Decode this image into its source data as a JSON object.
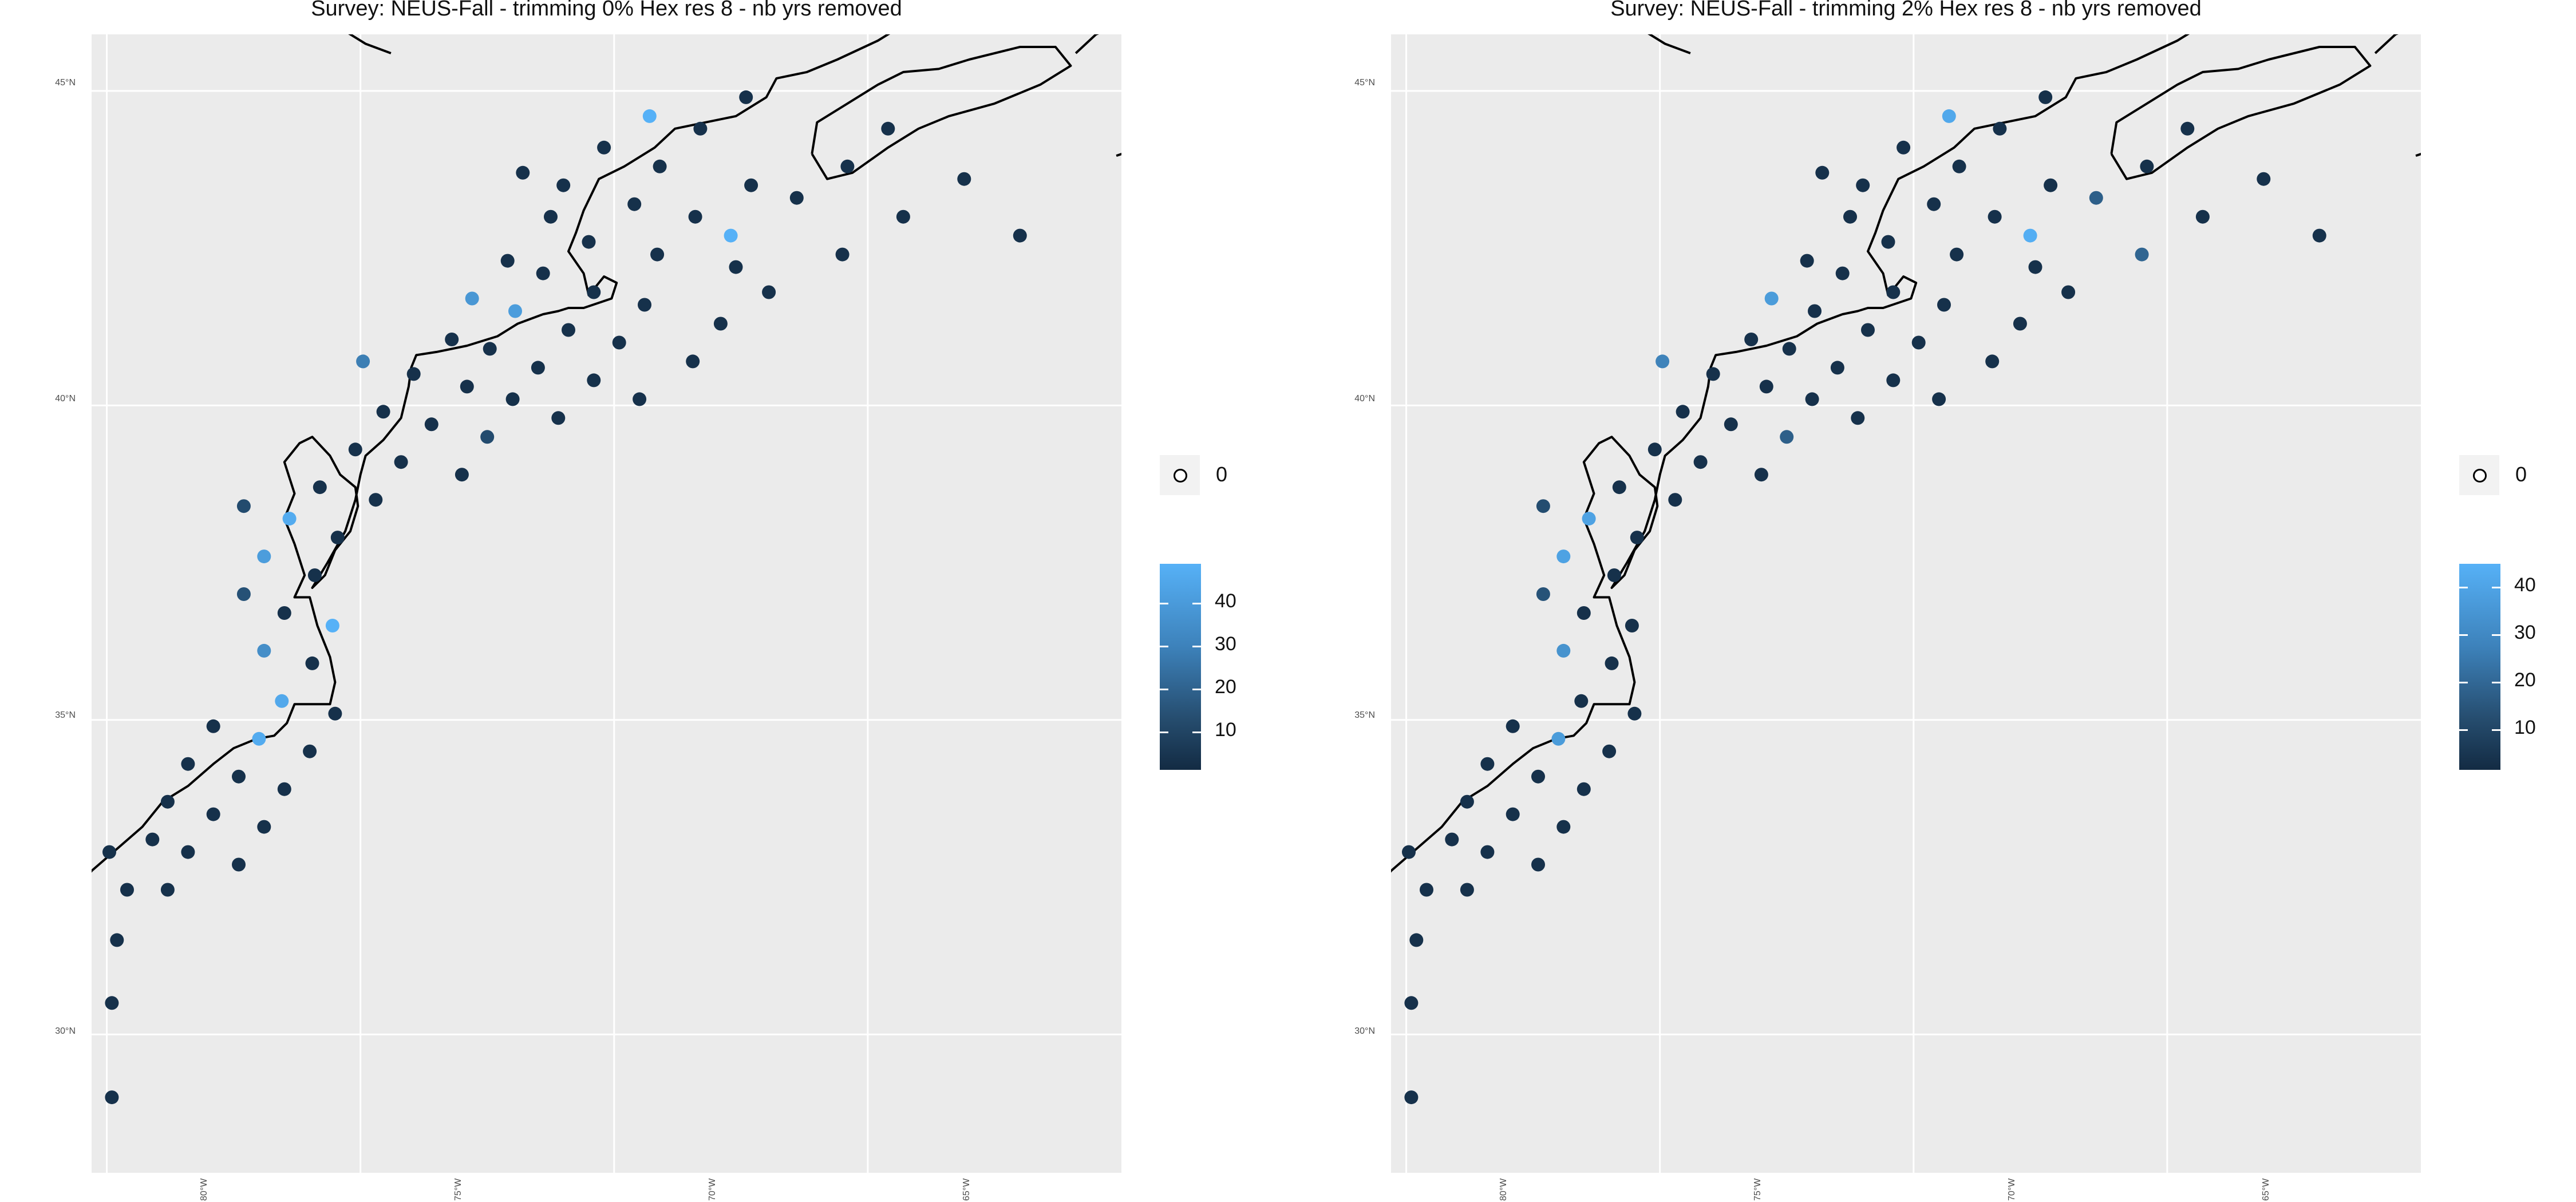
{
  "panels": [
    {
      "title": "Survey: NEUS-Fall - trimming 0% Hex res 8 - nb yrs removed",
      "y_ticks": [
        "45°N",
        "40°N",
        "35°N",
        "30°N"
      ],
      "x_ticks": [
        "80°W",
        "75°W",
        "70°W",
        "65°W"
      ],
      "legend_size_label": "0",
      "legend_colorbar_labels": [
        "40",
        "30",
        "20",
        "10"
      ],
      "chart_data": {
        "type": "scatter",
        "x_label": "",
        "y_label": "",
        "xlim": [
          -80.3,
          -60.0
        ],
        "ylim": [
          27.8,
          45.9
        ],
        "color_scale": {
          "low": "#132B43",
          "high": "#56B1F7",
          "range": [
            1,
            47
          ]
        },
        "points": [
          {
            "lon": -80.9,
            "lat": 30.0,
            "v": 3
          },
          {
            "lon": -80.7,
            "lat": 29.4,
            "v": 3
          },
          {
            "lon": -80.7,
            "lat": 28.6,
            "v": 3
          },
          {
            "lon": -79.9,
            "lat": 29.0,
            "v": 3
          },
          {
            "lon": -80.6,
            "lat": 30.3,
            "v": 3
          },
          {
            "lon": -80.85,
            "lat": 31.0,
            "v": 3
          },
          {
            "lon": -80.8,
            "lat": 31.9,
            "v": 3
          },
          {
            "lon": -80.5,
            "lat": 31.2,
            "v": 3
          },
          {
            "lon": -79.9,
            "lat": 30.5,
            "v": 3
          },
          {
            "lon": -79.8,
            "lat": 31.5,
            "v": 3
          },
          {
            "lon": -80.45,
            "lat": 32.1,
            "v": 3
          },
          {
            "lon": -79.6,
            "lat": 32.3,
            "v": 3
          },
          {
            "lon": -79.95,
            "lat": 32.9,
            "v": 3
          },
          {
            "lon": -79.1,
            "lat": 33.1,
            "v": 3
          },
          {
            "lon": -78.8,
            "lat": 32.3,
            "v": 3
          },
          {
            "lon": -78.8,
            "lat": 33.7,
            "v": 3
          },
          {
            "lon": -78.4,
            "lat": 32.9,
            "v": 3
          },
          {
            "lon": -78.4,
            "lat": 34.3,
            "v": 3
          },
          {
            "lon": -77.9,
            "lat": 33.5,
            "v": 3
          },
          {
            "lon": -77.4,
            "lat": 32.7,
            "v": 3
          },
          {
            "lon": -76.9,
            "lat": 33.3,
            "v": 3
          },
          {
            "lon": -77.4,
            "lat": 34.1,
            "v": 3
          },
          {
            "lon": -77.9,
            "lat": 34.9,
            "v": 3
          },
          {
            "lon": -77.0,
            "lat": 34.7,
            "v": 45
          },
          {
            "lon": -76.5,
            "lat": 33.9,
            "v": 3
          },
          {
            "lon": -76.0,
            "lat": 34.5,
            "v": 3
          },
          {
            "lon": -76.55,
            "lat": 35.3,
            "v": 44
          },
          {
            "lon": -75.5,
            "lat": 35.1,
            "v": 3
          },
          {
            "lon": -75.95,
            "lat": 35.9,
            "v": 3
          },
          {
            "lon": -76.9,
            "lat": 36.1,
            "v": 35
          },
          {
            "lon": -77.3,
            "lat": 37.0,
            "v": 14
          },
          {
            "lon": -76.5,
            "lat": 36.7,
            "v": 3
          },
          {
            "lon": -75.55,
            "lat": 36.5,
            "v": 47
          },
          {
            "lon": -75.9,
            "lat": 37.3,
            "v": 3
          },
          {
            "lon": -76.9,
            "lat": 37.6,
            "v": 40
          },
          {
            "lon": -77.3,
            "lat": 38.4,
            "v": 12
          },
          {
            "lon": -76.4,
            "lat": 38.2,
            "v": 45
          },
          {
            "lon": -75.45,
            "lat": 37.9,
            "v": 3
          },
          {
            "lon": -75.8,
            "lat": 38.7,
            "v": 3
          },
          {
            "lon": -75.1,
            "lat": 39.3,
            "v": 3
          },
          {
            "lon": -74.7,
            "lat": 38.5,
            "v": 3
          },
          {
            "lon": -74.2,
            "lat": 39.1,
            "v": 3
          },
          {
            "lon": -73.6,
            "lat": 39.7,
            "v": 3
          },
          {
            "lon": -73.0,
            "lat": 38.9,
            "v": 3
          },
          {
            "lon": -72.5,
            "lat": 39.5,
            "v": 12
          },
          {
            "lon": -72.0,
            "lat": 40.1,
            "v": 3
          },
          {
            "lon": -71.1,
            "lat": 39.8,
            "v": 3
          },
          {
            "lon": -74.55,
            "lat": 39.9,
            "v": 3
          },
          {
            "lon": -73.95,
            "lat": 40.5,
            "v": 3
          },
          {
            "lon": -74.95,
            "lat": 40.7,
            "v": 30
          },
          {
            "lon": -72.9,
            "lat": 40.3,
            "v": 3
          },
          {
            "lon": -72.45,
            "lat": 40.9,
            "v": 3
          },
          {
            "lon": -71.5,
            "lat": 40.6,
            "v": 3
          },
          {
            "lon": -70.4,
            "lat": 40.4,
            "v": 3
          },
          {
            "lon": -69.5,
            "lat": 40.1,
            "v": 3
          },
          {
            "lon": -68.45,
            "lat": 40.7,
            "v": 3
          },
          {
            "lon": -69.9,
            "lat": 41.0,
            "v": 3
          },
          {
            "lon": -70.9,
            "lat": 41.2,
            "v": 3
          },
          {
            "lon": -71.95,
            "lat": 41.5,
            "v": 40
          },
          {
            "lon": -73.2,
            "lat": 41.05,
            "v": 3
          },
          {
            "lon": -72.8,
            "lat": 41.7,
            "v": 38
          },
          {
            "lon": -71.4,
            "lat": 42.1,
            "v": 3
          },
          {
            "lon": -70.4,
            "lat": 41.8,
            "v": 3
          },
          {
            "lon": -69.4,
            "lat": 41.6,
            "v": 3
          },
          {
            "lon": -67.9,
            "lat": 41.3,
            "v": 3
          },
          {
            "lon": -66.95,
            "lat": 41.8,
            "v": 3
          },
          {
            "lon": -67.6,
            "lat": 42.2,
            "v": 3
          },
          {
            "lon": -69.15,
            "lat": 42.4,
            "v": 3
          },
          {
            "lon": -70.5,
            "lat": 42.6,
            "v": 3
          },
          {
            "lon": -72.1,
            "lat": 42.3,
            "v": 3
          },
          {
            "lon": -71.0,
            "lat": 43.5,
            "v": 3
          },
          {
            "lon": -71.25,
            "lat": 43.0,
            "v": 3
          },
          {
            "lon": -69.6,
            "lat": 43.2,
            "v": 3
          },
          {
            "lon": -68.4,
            "lat": 43.0,
            "v": 3
          },
          {
            "lon": -67.3,
            "lat": 43.5,
            "v": 3
          },
          {
            "lon": -66.4,
            "lat": 43.3,
            "v": 3
          },
          {
            "lon": -67.7,
            "lat": 42.7,
            "v": 47
          },
          {
            "lon": -65.5,
            "lat": 42.4,
            "v": 3
          },
          {
            "lon": -64.3,
            "lat": 43.0,
            "v": 3
          },
          {
            "lon": -63.1,
            "lat": 43.6,
            "v": 3
          },
          {
            "lon": -62.0,
            "lat": 42.7,
            "v": 3
          },
          {
            "lon": -65.4,
            "lat": 43.8,
            "v": 3
          },
          {
            "lon": -64.6,
            "lat": 44.4,
            "v": 3
          },
          {
            "lon": -67.4,
            "lat": 44.9,
            "v": 3
          },
          {
            "lon": -68.3,
            "lat": 44.4,
            "v": 3
          },
          {
            "lon": -69.3,
            "lat": 44.6,
            "v": 48
          },
          {
            "lon": -70.2,
            "lat": 44.1,
            "v": 3
          },
          {
            "lon": -69.1,
            "lat": 43.8,
            "v": 3
          },
          {
            "lon": -71.8,
            "lat": 43.7,
            "v": 3
          }
        ]
      }
    },
    {
      "title": "Survey: NEUS-Fall - trimming 2% Hex res 8 - nb yrs removed",
      "y_ticks": [
        "45°N",
        "40°N",
        "35°N",
        "30°N"
      ],
      "x_ticks": [
        "80°W",
        "75°W",
        "70°W",
        "65°W"
      ],
      "legend_size_label": "0",
      "legend_colorbar_labels": [
        "40",
        "30",
        "20",
        "10"
      ],
      "chart_data": {
        "type": "scatter",
        "x_label": "",
        "y_label": "",
        "xlim": [
          -80.3,
          -60.0
        ],
        "ylim": [
          27.8,
          45.9
        ],
        "color_scale": {
          "low": "#132B43",
          "high": "#56B1F7",
          "range": [
            1,
            45
          ]
        },
        "points": [
          {
            "lon": -80.9,
            "lat": 30.0,
            "v": 3
          },
          {
            "lon": -80.7,
            "lat": 29.4,
            "v": 3
          },
          {
            "lon": -80.7,
            "lat": 28.6,
            "v": 3
          },
          {
            "lon": -79.9,
            "lat": 29.0,
            "v": 3
          },
          {
            "lon": -80.6,
            "lat": 30.3,
            "v": 3
          },
          {
            "lon": -80.85,
            "lat": 31.0,
            "v": 3
          },
          {
            "lon": -80.8,
            "lat": 31.9,
            "v": 3
          },
          {
            "lon": -80.5,
            "lat": 31.2,
            "v": 3
          },
          {
            "lon": -79.9,
            "lat": 30.5,
            "v": 3
          },
          {
            "lon": -79.8,
            "lat": 31.5,
            "v": 3
          },
          {
            "lon": -80.45,
            "lat": 32.1,
            "v": 3
          },
          {
            "lon": -79.6,
            "lat": 32.3,
            "v": 3
          },
          {
            "lon": -79.95,
            "lat": 32.9,
            "v": 3
          },
          {
            "lon": -79.1,
            "lat": 33.1,
            "v": 3
          },
          {
            "lon": -78.8,
            "lat": 32.3,
            "v": 3
          },
          {
            "lon": -78.8,
            "lat": 33.7,
            "v": 3
          },
          {
            "lon": -78.4,
            "lat": 32.9,
            "v": 3
          },
          {
            "lon": -78.4,
            "lat": 34.3,
            "v": 3
          },
          {
            "lon": -77.9,
            "lat": 33.5,
            "v": 3
          },
          {
            "lon": -77.4,
            "lat": 32.7,
            "v": 3
          },
          {
            "lon": -76.9,
            "lat": 33.3,
            "v": 3
          },
          {
            "lon": -77.4,
            "lat": 34.1,
            "v": 3
          },
          {
            "lon": -77.9,
            "lat": 34.9,
            "v": 3
          },
          {
            "lon": -77.0,
            "lat": 34.7,
            "v": 38
          },
          {
            "lon": -76.5,
            "lat": 33.9,
            "v": 3
          },
          {
            "lon": -76.0,
            "lat": 34.5,
            "v": 3
          },
          {
            "lon": -76.55,
            "lat": 35.3,
            "v": 3
          },
          {
            "lon": -75.5,
            "lat": 35.1,
            "v": 3
          },
          {
            "lon": -75.95,
            "lat": 35.9,
            "v": 3
          },
          {
            "lon": -76.9,
            "lat": 36.1,
            "v": 35
          },
          {
            "lon": -77.3,
            "lat": 37.0,
            "v": 14
          },
          {
            "lon": -76.5,
            "lat": 36.7,
            "v": 3
          },
          {
            "lon": -75.55,
            "lat": 36.5,
            "v": 3
          },
          {
            "lon": -75.9,
            "lat": 37.3,
            "v": 3
          },
          {
            "lon": -76.9,
            "lat": 37.6,
            "v": 40
          },
          {
            "lon": -77.3,
            "lat": 38.4,
            "v": 12
          },
          {
            "lon": -76.4,
            "lat": 38.2,
            "v": 40
          },
          {
            "lon": -75.45,
            "lat": 37.9,
            "v": 3
          },
          {
            "lon": -75.8,
            "lat": 38.7,
            "v": 3
          },
          {
            "lon": -75.1,
            "lat": 39.3,
            "v": 3
          },
          {
            "lon": -74.7,
            "lat": 38.5,
            "v": 3
          },
          {
            "lon": -74.2,
            "lat": 39.1,
            "v": 3
          },
          {
            "lon": -73.6,
            "lat": 39.7,
            "v": 3
          },
          {
            "lon": -73.0,
            "lat": 38.9,
            "v": 3
          },
          {
            "lon": -72.5,
            "lat": 39.5,
            "v": 18
          },
          {
            "lon": -72.0,
            "lat": 40.1,
            "v": 3
          },
          {
            "lon": -71.1,
            "lat": 39.8,
            "v": 3
          },
          {
            "lon": -74.55,
            "lat": 39.9,
            "v": 3
          },
          {
            "lon": -73.95,
            "lat": 40.5,
            "v": 3
          },
          {
            "lon": -74.95,
            "lat": 40.7,
            "v": 30
          },
          {
            "lon": -72.9,
            "lat": 40.3,
            "v": 3
          },
          {
            "lon": -72.45,
            "lat": 40.9,
            "v": 3
          },
          {
            "lon": -71.5,
            "lat": 40.6,
            "v": 3
          },
          {
            "lon": -70.4,
            "lat": 40.4,
            "v": 3
          },
          {
            "lon": -69.5,
            "lat": 40.1,
            "v": 3
          },
          {
            "lon": -68.45,
            "lat": 40.7,
            "v": 3
          },
          {
            "lon": -69.9,
            "lat": 41.0,
            "v": 3
          },
          {
            "lon": -70.9,
            "lat": 41.2,
            "v": 3
          },
          {
            "lon": -71.95,
            "lat": 41.5,
            "v": 3
          },
          {
            "lon": -73.2,
            "lat": 41.05,
            "v": 3
          },
          {
            "lon": -72.8,
            "lat": 41.7,
            "v": 38
          },
          {
            "lon": -71.4,
            "lat": 42.1,
            "v": 3
          },
          {
            "lon": -70.4,
            "lat": 41.8,
            "v": 3
          },
          {
            "lon": -69.4,
            "lat": 41.6,
            "v": 3
          },
          {
            "lon": -67.9,
            "lat": 41.3,
            "v": 3
          },
          {
            "lon": -66.95,
            "lat": 41.8,
            "v": 3
          },
          {
            "lon": -67.6,
            "lat": 42.2,
            "v": 3
          },
          {
            "lon": -69.15,
            "lat": 42.4,
            "v": 3
          },
          {
            "lon": -70.5,
            "lat": 42.6,
            "v": 3
          },
          {
            "lon": -72.1,
            "lat": 42.3,
            "v": 3
          },
          {
            "lon": -71.0,
            "lat": 43.5,
            "v": 3
          },
          {
            "lon": -71.25,
            "lat": 43.0,
            "v": 3
          },
          {
            "lon": -69.6,
            "lat": 43.2,
            "v": 3
          },
          {
            "lon": -68.4,
            "lat": 43.0,
            "v": 3
          },
          {
            "lon": -67.3,
            "lat": 43.5,
            "v": 3
          },
          {
            "lon": -66.4,
            "lat": 43.3,
            "v": 18
          },
          {
            "lon": -67.7,
            "lat": 42.7,
            "v": 44
          },
          {
            "lon": -65.5,
            "lat": 42.4,
            "v": 20
          },
          {
            "lon": -64.3,
            "lat": 43.0,
            "v": 3
          },
          {
            "lon": -63.1,
            "lat": 43.6,
            "v": 3
          },
          {
            "lon": -62.0,
            "lat": 42.7,
            "v": 3
          },
          {
            "lon": -65.4,
            "lat": 43.8,
            "v": 3
          },
          {
            "lon": -64.6,
            "lat": 44.4,
            "v": 3
          },
          {
            "lon": -67.4,
            "lat": 44.9,
            "v": 3
          },
          {
            "lon": -68.3,
            "lat": 44.4,
            "v": 3
          },
          {
            "lon": -69.3,
            "lat": 44.6,
            "v": 42
          },
          {
            "lon": -70.2,
            "lat": 44.1,
            "v": 3
          },
          {
            "lon": -69.1,
            "lat": 43.8,
            "v": 3
          },
          {
            "lon": -71.8,
            "lat": 43.7,
            "v": 3
          }
        ]
      }
    }
  ]
}
